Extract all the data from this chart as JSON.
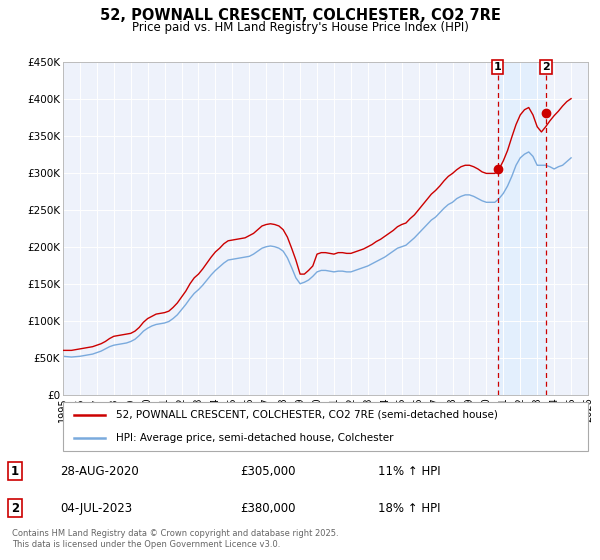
{
  "title": "52, POWNALL CRESCENT, COLCHESTER, CO2 7RE",
  "subtitle": "Price paid vs. HM Land Registry's House Price Index (HPI)",
  "xlim": [
    1995,
    2026
  ],
  "ylim": [
    0,
    450000
  ],
  "yticks": [
    0,
    50000,
    100000,
    150000,
    200000,
    250000,
    300000,
    350000,
    400000,
    450000
  ],
  "ytick_labels": [
    "£0",
    "£50K",
    "£100K",
    "£150K",
    "£200K",
    "£250K",
    "£300K",
    "£350K",
    "£400K",
    "£450K"
  ],
  "xticks": [
    1995,
    1996,
    1997,
    1998,
    1999,
    2000,
    2001,
    2002,
    2003,
    2004,
    2005,
    2006,
    2007,
    2008,
    2009,
    2010,
    2011,
    2012,
    2013,
    2014,
    2015,
    2016,
    2017,
    2018,
    2019,
    2020,
    2021,
    2022,
    2023,
    2024,
    2025,
    2026
  ],
  "red_line_color": "#cc0000",
  "blue_line_color": "#7aaadd",
  "blue_fill_color": "#ddeeff",
  "background_color": "#eef2fb",
  "marker1_date": 2020.66,
  "marker1_y": 305000,
  "marker1_label": "1",
  "marker1_text": "28-AUG-2020",
  "marker1_price": "£305,000",
  "marker1_hpi": "11% ↑ HPI",
  "marker2_date": 2023.5,
  "marker2_y": 380000,
  "marker2_label": "2",
  "marker2_text": "04-JUL-2023",
  "marker2_price": "£380,000",
  "marker2_hpi": "18% ↑ HPI",
  "legend_line1": "52, POWNALL CRESCENT, COLCHESTER, CO2 7RE (semi-detached house)",
  "legend_line2": "HPI: Average price, semi-detached house, Colchester",
  "footer": "Contains HM Land Registry data © Crown copyright and database right 2025.\nThis data is licensed under the Open Government Licence v3.0.",
  "hpi_data": {
    "years": [
      1995.0,
      1995.25,
      1995.5,
      1995.75,
      1996.0,
      1996.25,
      1996.5,
      1996.75,
      1997.0,
      1997.25,
      1997.5,
      1997.75,
      1998.0,
      1998.25,
      1998.5,
      1998.75,
      1999.0,
      1999.25,
      1999.5,
      1999.75,
      2000.0,
      2000.25,
      2000.5,
      2000.75,
      2001.0,
      2001.25,
      2001.5,
      2001.75,
      2002.0,
      2002.25,
      2002.5,
      2002.75,
      2003.0,
      2003.25,
      2003.5,
      2003.75,
      2004.0,
      2004.25,
      2004.5,
      2004.75,
      2005.0,
      2005.25,
      2005.5,
      2005.75,
      2006.0,
      2006.25,
      2006.5,
      2006.75,
      2007.0,
      2007.25,
      2007.5,
      2007.75,
      2008.0,
      2008.25,
      2008.5,
      2008.75,
      2009.0,
      2009.25,
      2009.5,
      2009.75,
      2010.0,
      2010.25,
      2010.5,
      2010.75,
      2011.0,
      2011.25,
      2011.5,
      2011.75,
      2012.0,
      2012.25,
      2012.5,
      2012.75,
      2013.0,
      2013.25,
      2013.5,
      2013.75,
      2014.0,
      2014.25,
      2014.5,
      2014.75,
      2015.0,
      2015.25,
      2015.5,
      2015.75,
      2016.0,
      2016.25,
      2016.5,
      2016.75,
      2017.0,
      2017.25,
      2017.5,
      2017.75,
      2018.0,
      2018.25,
      2018.5,
      2018.75,
      2019.0,
      2019.25,
      2019.5,
      2019.75,
      2020.0,
      2020.25,
      2020.5,
      2020.75,
      2021.0,
      2021.25,
      2021.5,
      2021.75,
      2022.0,
      2022.25,
      2022.5,
      2022.75,
      2023.0,
      2023.25,
      2023.5,
      2023.75,
      2024.0,
      2024.25,
      2024.5,
      2024.75,
      2025.0
    ],
    "values": [
      52000,
      51500,
      51000,
      51500,
      52000,
      53000,
      54000,
      55000,
      57000,
      59000,
      62000,
      65000,
      67000,
      68000,
      69000,
      70000,
      72000,
      75000,
      80000,
      86000,
      90000,
      93000,
      95000,
      96000,
      97000,
      99000,
      103000,
      108000,
      115000,
      122000,
      130000,
      137000,
      142000,
      148000,
      155000,
      162000,
      168000,
      173000,
      178000,
      182000,
      183000,
      184000,
      185000,
      186000,
      187000,
      190000,
      194000,
      198000,
      200000,
      201000,
      200000,
      198000,
      194000,
      185000,
      172000,
      158000,
      150000,
      152000,
      155000,
      160000,
      166000,
      168000,
      168000,
      167000,
      166000,
      167000,
      167000,
      166000,
      166000,
      168000,
      170000,
      172000,
      174000,
      177000,
      180000,
      183000,
      186000,
      190000,
      194000,
      198000,
      200000,
      202000,
      207000,
      212000,
      218000,
      224000,
      230000,
      236000,
      240000,
      246000,
      252000,
      257000,
      260000,
      265000,
      268000,
      270000,
      270000,
      268000,
      265000,
      262000,
      260000,
      260000,
      260000,
      265000,
      272000,
      282000,
      295000,
      310000,
      320000,
      325000,
      328000,
      322000,
      310000,
      310000,
      310000,
      308000,
      305000,
      308000,
      310000,
      315000,
      320000
    ]
  },
  "red_data": {
    "years": [
      1995.0,
      1995.25,
      1995.5,
      1995.75,
      1996.0,
      1996.25,
      1996.5,
      1996.75,
      1997.0,
      1997.25,
      1997.5,
      1997.75,
      1998.0,
      1998.25,
      1998.5,
      1998.75,
      1999.0,
      1999.25,
      1999.5,
      1999.75,
      2000.0,
      2000.25,
      2000.5,
      2000.75,
      2001.0,
      2001.25,
      2001.5,
      2001.75,
      2002.0,
      2002.25,
      2002.5,
      2002.75,
      2003.0,
      2003.25,
      2003.5,
      2003.75,
      2004.0,
      2004.25,
      2004.5,
      2004.75,
      2005.0,
      2005.25,
      2005.5,
      2005.75,
      2006.0,
      2006.25,
      2006.5,
      2006.75,
      2007.0,
      2007.25,
      2007.5,
      2007.75,
      2008.0,
      2008.25,
      2008.5,
      2008.75,
      2009.0,
      2009.25,
      2009.5,
      2009.75,
      2010.0,
      2010.25,
      2010.5,
      2010.75,
      2011.0,
      2011.25,
      2011.5,
      2011.75,
      2012.0,
      2012.25,
      2012.5,
      2012.75,
      2013.0,
      2013.25,
      2013.5,
      2013.75,
      2014.0,
      2014.25,
      2014.5,
      2014.75,
      2015.0,
      2015.25,
      2015.5,
      2015.75,
      2016.0,
      2016.25,
      2016.5,
      2016.75,
      2017.0,
      2017.25,
      2017.5,
      2017.75,
      2018.0,
      2018.25,
      2018.5,
      2018.75,
      2019.0,
      2019.25,
      2019.5,
      2019.75,
      2020.0,
      2020.25,
      2020.5,
      2020.75,
      2021.0,
      2021.25,
      2021.5,
      2021.75,
      2022.0,
      2022.25,
      2022.5,
      2022.75,
      2023.0,
      2023.25,
      2023.5,
      2023.75,
      2024.0,
      2024.25,
      2024.5,
      2024.75,
      2025.0
    ],
    "values": [
      60000,
      60000,
      60000,
      61000,
      62000,
      63000,
      64000,
      65000,
      67000,
      69000,
      72000,
      76000,
      79000,
      80000,
      81000,
      82000,
      83000,
      86000,
      91000,
      98000,
      103000,
      106000,
      109000,
      110000,
      111000,
      113000,
      118000,
      124000,
      132000,
      140000,
      150000,
      158000,
      163000,
      170000,
      178000,
      186000,
      193000,
      198000,
      204000,
      208000,
      209000,
      210000,
      211000,
      212000,
      215000,
      218000,
      223000,
      228000,
      230000,
      231000,
      230000,
      228000,
      223000,
      213000,
      198000,
      182000,
      163000,
      163000,
      168000,
      174000,
      190000,
      192000,
      192000,
      191000,
      190000,
      192000,
      192000,
      191000,
      191000,
      193000,
      195000,
      197000,
      200000,
      203000,
      207000,
      210000,
      214000,
      218000,
      222000,
      227000,
      230000,
      232000,
      238000,
      243000,
      250000,
      257000,
      264000,
      271000,
      276000,
      282000,
      289000,
      295000,
      299000,
      304000,
      308000,
      310000,
      310000,
      308000,
      305000,
      301000,
      299000,
      299000,
      299000,
      305000,
      316000,
      330000,
      348000,
      365000,
      378000,
      385000,
      388000,
      378000,
      362000,
      355000,
      362000,
      370000,
      377000,
      383000,
      390000,
      396000,
      400000
    ]
  }
}
